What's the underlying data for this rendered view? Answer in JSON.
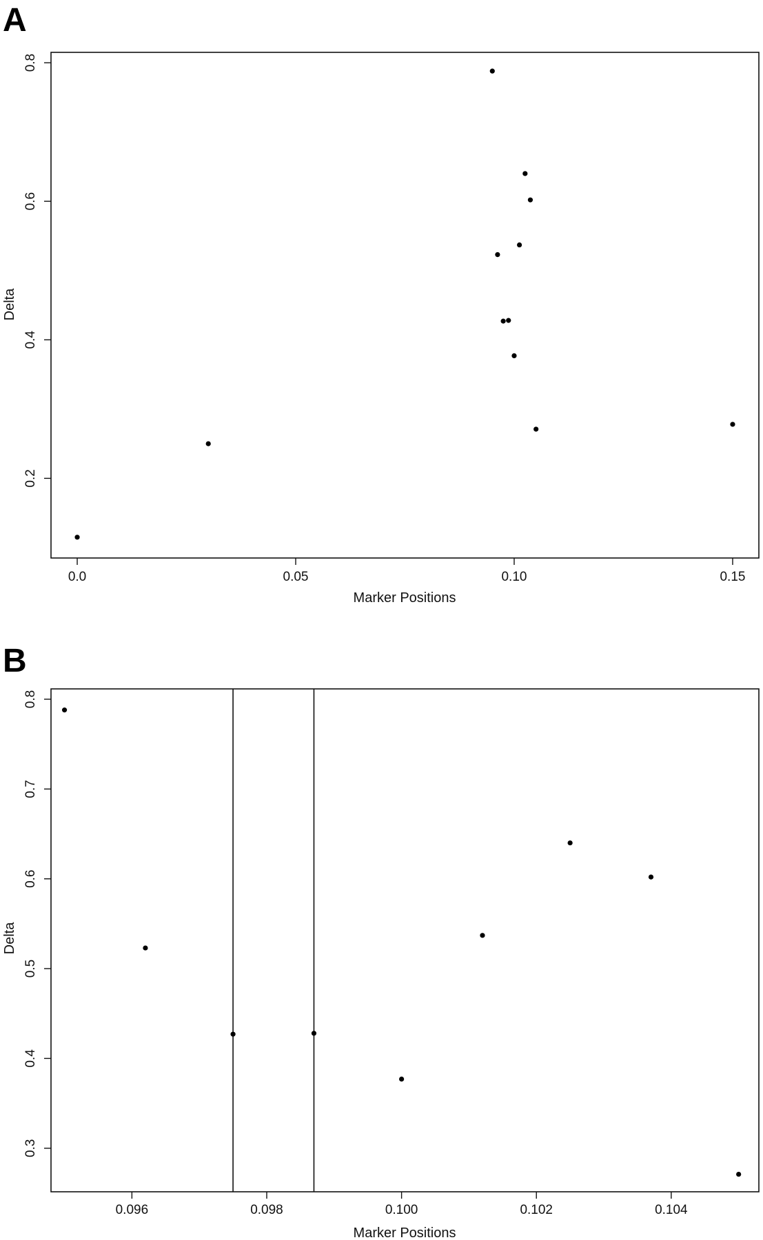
{
  "chart_data": [
    {
      "panel": "A",
      "type": "scatter",
      "title": "",
      "xlabel": "Marker Positions",
      "ylabel": "Delta",
      "xlim": [
        -0.006,
        0.156
      ],
      "ylim": [
        0.085,
        0.815
      ],
      "xticks": [
        0.0,
        0.05,
        0.1,
        0.15
      ],
      "xtick_labels": [
        "0.0",
        "0.05",
        "0.10",
        "0.15"
      ],
      "yticks": [
        0.2,
        0.4,
        0.6,
        0.8
      ],
      "ytick_labels": [
        "0.2",
        "0.4",
        "0.6",
        "0.8"
      ],
      "grid": false,
      "points": [
        {
          "x": 0.0,
          "y": 0.115
        },
        {
          "x": 0.03,
          "y": 0.25
        },
        {
          "x": 0.095,
          "y": 0.788
        },
        {
          "x": 0.0962,
          "y": 0.523
        },
        {
          "x": 0.0975,
          "y": 0.427
        },
        {
          "x": 0.0987,
          "y": 0.428
        },
        {
          "x": 0.1,
          "y": 0.377
        },
        {
          "x": 0.1012,
          "y": 0.537
        },
        {
          "x": 0.1025,
          "y": 0.64
        },
        {
          "x": 0.1037,
          "y": 0.602
        },
        {
          "x": 0.105,
          "y": 0.271
        },
        {
          "x": 0.15,
          "y": 0.278
        }
      ]
    },
    {
      "panel": "B",
      "type": "scatter",
      "title": "",
      "xlabel": "Marker Positions",
      "ylabel": "Delta",
      "xlim": [
        0.0948,
        0.1053
      ],
      "ylim": [
        0.2515,
        0.8115
      ],
      "xticks": [
        0.096,
        0.098,
        0.1,
        0.102,
        0.104
      ],
      "xtick_labels": [
        "0.096",
        "0.098",
        "0.100",
        "0.102",
        "0.104"
      ],
      "yticks": [
        0.3,
        0.4,
        0.5,
        0.6,
        0.7,
        0.8
      ],
      "ytick_labels": [
        "0.3",
        "0.4",
        "0.5",
        "0.6",
        "0.7",
        "0.8"
      ],
      "grid": false,
      "vertical_lines": [
        0.0975,
        0.0987
      ],
      "points": [
        {
          "x": 0.095,
          "y": 0.788
        },
        {
          "x": 0.0962,
          "y": 0.523
        },
        {
          "x": 0.0975,
          "y": 0.427
        },
        {
          "x": 0.0987,
          "y": 0.428
        },
        {
          "x": 0.1,
          "y": 0.377
        },
        {
          "x": 0.1012,
          "y": 0.537
        },
        {
          "x": 0.1025,
          "y": 0.64
        },
        {
          "x": 0.1037,
          "y": 0.602
        },
        {
          "x": 0.105,
          "y": 0.271
        }
      ]
    }
  ]
}
